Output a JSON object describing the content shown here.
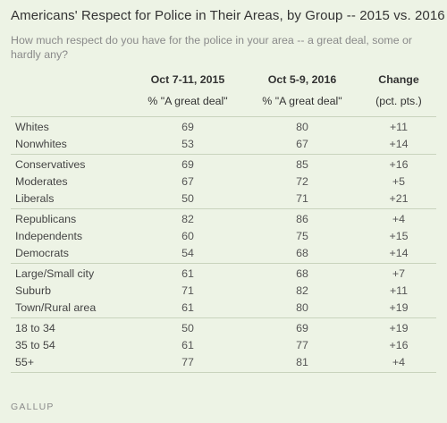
{
  "title": "Americans' Respect for Police in Their Areas, by Group -- 2015 vs. 2016",
  "subtitle": "How much respect do you have for the police in your area -- a great deal, some or hardly any?",
  "columns": {
    "c1_date": "Oct 7-11, 2015",
    "c1_unit": "% \"A great deal\"",
    "c2_date": "Oct 5-9, 2016",
    "c2_unit": "% \"A great deal\"",
    "c3_title": "Change",
    "c3_unit": "(pct. pts.)"
  },
  "chart_data": {
    "type": "table",
    "columns": [
      "Oct 7-11, 2015",
      "Oct 5-9, 2016",
      "Change"
    ],
    "groups": [
      {
        "rows": [
          {
            "label": "Whites",
            "y2015": "69",
            "y2016": "80",
            "change": "+11"
          },
          {
            "label": "Nonwhites",
            "y2015": "53",
            "y2016": "67",
            "change": "+14"
          }
        ]
      },
      {
        "rows": [
          {
            "label": "Conservatives",
            "y2015": "69",
            "y2016": "85",
            "change": "+16"
          },
          {
            "label": "Moderates",
            "y2015": "67",
            "y2016": "72",
            "change": "+5"
          },
          {
            "label": "Liberals",
            "y2015": "50",
            "y2016": "71",
            "change": "+21"
          }
        ]
      },
      {
        "rows": [
          {
            "label": "Republicans",
            "y2015": "82",
            "y2016": "86",
            "change": "+4"
          },
          {
            "label": "Independents",
            "y2015": "60",
            "y2016": "75",
            "change": "+15"
          },
          {
            "label": "Democrats",
            "y2015": "54",
            "y2016": "68",
            "change": "+14"
          }
        ]
      },
      {
        "rows": [
          {
            "label": "Large/Small city",
            "y2015": "61",
            "y2016": "68",
            "change": "+7"
          },
          {
            "label": "Suburb",
            "y2015": "71",
            "y2016": "82",
            "change": "+11"
          },
          {
            "label": "Town/Rural area",
            "y2015": "61",
            "y2016": "80",
            "change": "+19"
          }
        ]
      },
      {
        "rows": [
          {
            "label": "18 to 34",
            "y2015": "50",
            "y2016": "69",
            "change": "+19"
          },
          {
            "label": "35 to 54",
            "y2015": "61",
            "y2016": "77",
            "change": "+16"
          },
          {
            "label": "55+",
            "y2015": "77",
            "y2016": "81",
            "change": "+4"
          }
        ]
      }
    ]
  },
  "footer": "GALLUP"
}
